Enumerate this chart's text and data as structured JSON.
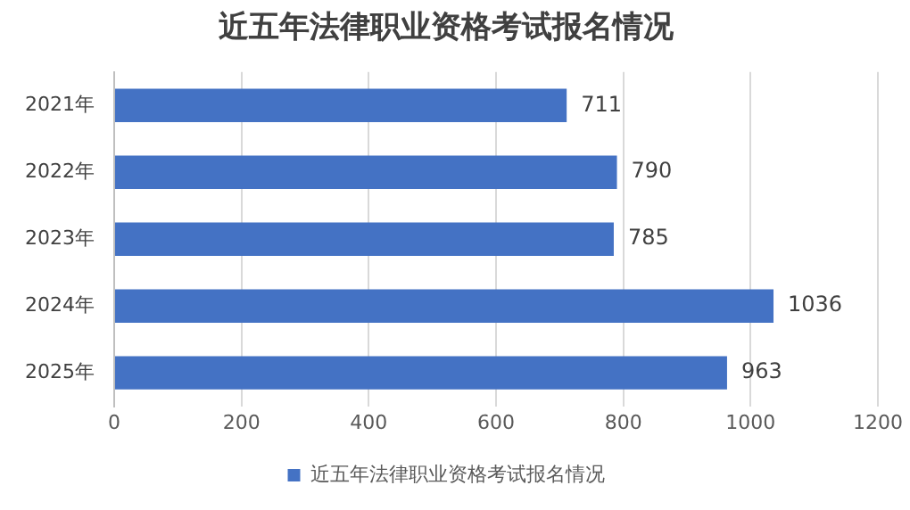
{
  "chart_data": {
    "type": "bar",
    "orientation": "horizontal",
    "title": "近五年法律职业资格考试报名情况",
    "categories": [
      "2021年",
      "2022年",
      "2023年",
      "2024年",
      "2025年"
    ],
    "series": [
      {
        "name": "近五年法律职业资格考试报名情况",
        "color": "#4472c4",
        "values": [
          711,
          790,
          785,
          1036,
          963
        ]
      }
    ],
    "xlim": [
      0,
      1200
    ],
    "xticks": [
      0,
      200,
      400,
      600,
      800,
      1000,
      1200
    ],
    "grid": "x",
    "legend": "bottom",
    "data_labels": true
  }
}
